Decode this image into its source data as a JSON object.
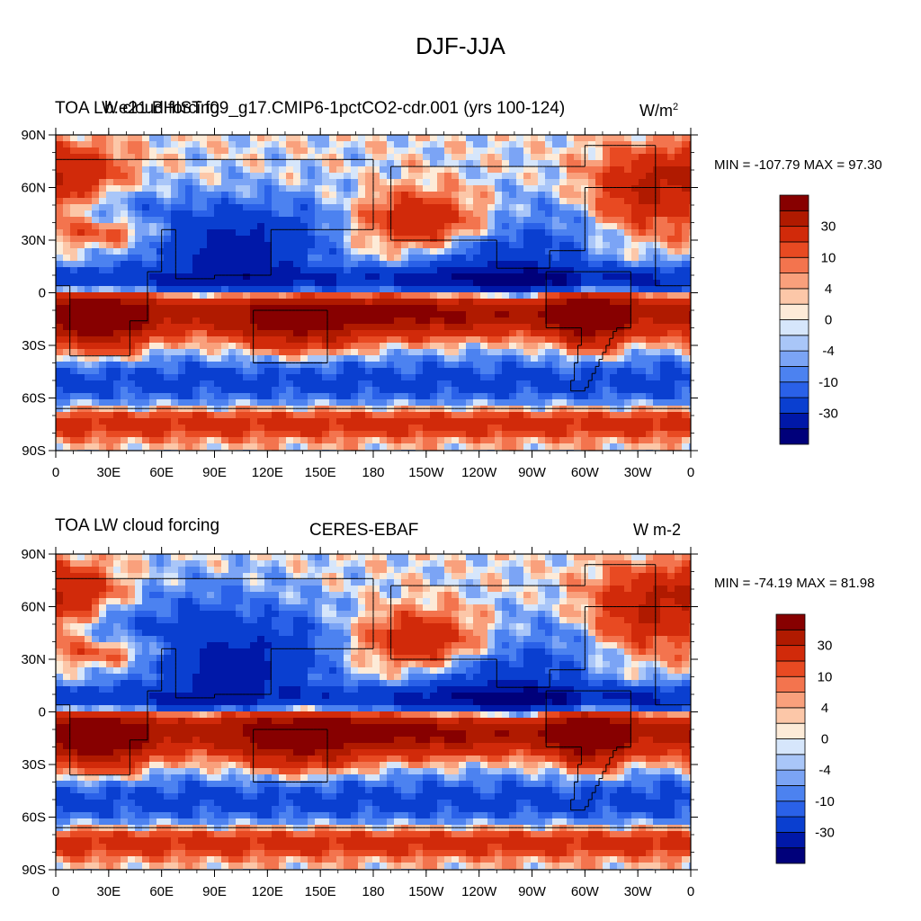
{
  "figure_title": "DJF-JJA",
  "colors": {
    "levels": [
      "#00007a",
      "#0018a8",
      "#0a3fd0",
      "#2a61e8",
      "#4c82f0",
      "#7ba4f5",
      "#a9c6f8",
      "#d6e6fb",
      "#fdebd8",
      "#fcc7a8",
      "#f9a07c",
      "#f3744e",
      "#e84a22",
      "#d12a0a",
      "#b01a00",
      "#870000"
    ],
    "land_outline": "#000000"
  },
  "chart_data": [
    {
      "type": "heatmap",
      "title_left": "TOA LW cloud forcing",
      "title_center": "b.e21.BHIST.f09_g17.CMIP6-1pctCO2-cdr.001 (yrs 100-124)",
      "title_right": "W/m",
      "title_right_superscript": "2",
      "min_label": "MIN = -107.79",
      "max_label": "MAX =  97.30",
      "min": -107.79,
      "max": 97.3,
      "x_ticks": [
        "0",
        "30E",
        "60E",
        "90E",
        "120E",
        "150E",
        "180",
        "150W",
        "120W",
        "90W",
        "60W",
        "30W",
        "0"
      ],
      "y_ticks": [
        "90N",
        "60N",
        "30N",
        "0",
        "30S",
        "60S",
        "90S"
      ],
      "colorbar_labels": [
        "30",
        "10",
        "4",
        "0",
        "-4",
        "-10",
        "-30"
      ]
    },
    {
      "type": "heatmap",
      "title_left": "TOA LW cloud forcing",
      "title_center": "CERES-EBAF",
      "title_right": "W m-2",
      "min_label": "MIN = -74.19",
      "max_label": "MAX =  81.98",
      "min": -74.19,
      "max": 81.98,
      "x_ticks": [
        "0",
        "30E",
        "60E",
        "90E",
        "120E",
        "150E",
        "180",
        "150W",
        "120W",
        "90W",
        "60W",
        "30W",
        "0"
      ],
      "y_ticks": [
        "90N",
        "60N",
        "30N",
        "0",
        "30S",
        "60S",
        "90S"
      ],
      "colorbar_labels": [
        "30",
        "10",
        "4",
        "0",
        "-4",
        "-10",
        "-30"
      ]
    }
  ]
}
